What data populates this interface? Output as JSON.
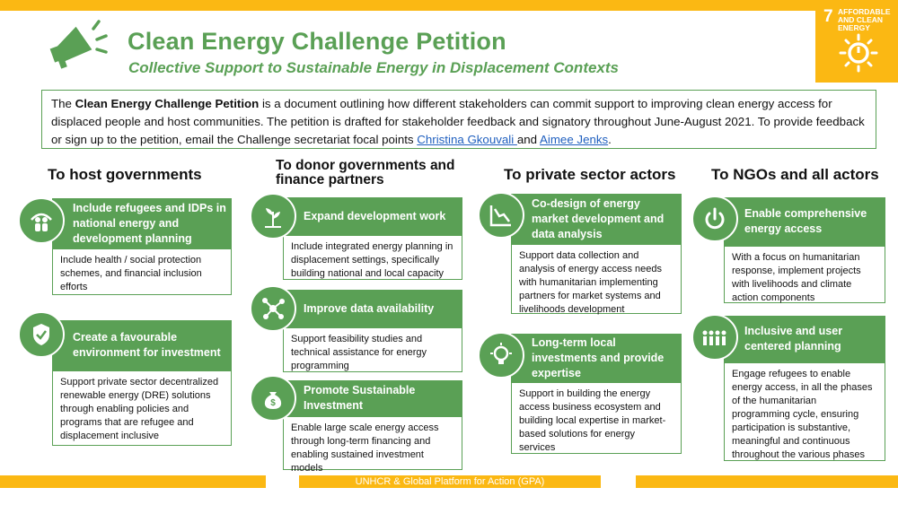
{
  "header": {
    "title": "Clean Energy Challenge Petition",
    "subtitle": "Collective Support to Sustainable Energy in Displacement Contexts",
    "sdg_number": "7",
    "sdg_label": "AFFORDABLE AND CLEAN ENERGY",
    "accent_color": "#5aa055",
    "sdg_color": "#fbb813"
  },
  "intro": {
    "prefix": "The ",
    "bold": "Clean Energy Challenge Petition",
    "text": " is a document outlining how different stakeholders can commit support to improving clean energy access for displaced people and host communities. The petition is drafted for stakeholder feedback and signatory throughout June-August 2021. To provide feedback or sign up to the petition, email the Challenge secretariat focal points ",
    "link1": "Christina Gkouvali ",
    "and": "and ",
    "link2": "Aimee Jenks",
    "end": "."
  },
  "columns": {
    "host": {
      "heading": "To host governments",
      "card1": {
        "title": "Include refugees and IDPs in national energy and development  planning",
        "body": "Include health / social protection schemes, and financial inclusion efforts",
        "icon": "people-shelter-icon"
      },
      "card2": {
        "title": "Create a favourable environment for investment",
        "body": "Support private sector decentralized renewable energy (DRE) solutions through enabling policies and programs that are refugee and displacement inclusive",
        "icon": "shield-document-icon"
      }
    },
    "donor": {
      "heading": "To donor governments and finance partners",
      "card1": {
        "title": "Expand development work",
        "body": "Include integrated energy planning in displacement settings, specifically building national and local capacity",
        "icon": "growth-plant-icon"
      },
      "card2": {
        "title": "Improve data availability",
        "body": "Support feasibility studies and technical assistance for energy programming",
        "icon": "network-nodes-icon"
      },
      "card3": {
        "title": "Promote Sustainable Investment",
        "body": "Enable large scale energy access through long-term financing and enabling sustained investment models",
        "icon": "money-bag-icon"
      }
    },
    "private": {
      "heading": "To private sector actors",
      "card1": {
        "title": "Co-design of energy market development and data analysis",
        "body": "Support data collection and analysis of energy access needs with humanitarian implementing partners for market systems and livelihoods development",
        "icon": "chart-line-icon"
      },
      "card2": {
        "title": "Long-term local investments and provide expertise",
        "body": "Support in building the energy access business ecosystem and building local expertise in market-based solutions for energy services",
        "icon": "lightbulb-gear-icon"
      }
    },
    "ngo": {
      "heading": "To NGOs and all actors",
      "card1": {
        "title": "Enable comprehensive energy access",
        "body": "With a focus on humanitarian response, implement projects with livelihoods and climate action components",
        "icon": "power-icon"
      },
      "card2": {
        "title": "Inclusive and user centered planning",
        "body": "Engage refugees to enable energy access, in all the phases of the humanitarian programming cycle, ensuring participation is substantive, meaningful and continuous throughout the various phases",
        "icon": "group-people-icon"
      }
    }
  },
  "footer": {
    "text": "UNHCR & Global Platform for Action (GPA)"
  }
}
